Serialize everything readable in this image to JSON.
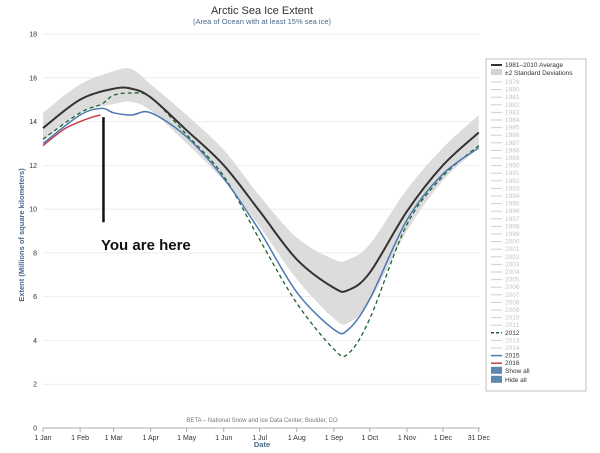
{
  "chart_data": {
    "type": "line",
    "title": "Arctic Sea Ice Extent",
    "subtitle": "(Area of Ocean with at least 15% sea ice)",
    "xlabel": "Date",
    "ylabel": "Extent (Millions of square kilometers)",
    "credit": "BETA – National Snow and Ice Data Center, Boulder, CO",
    "ylim": [
      0,
      18
    ],
    "yticks": [
      0,
      2,
      4,
      6,
      8,
      10,
      12,
      14,
      16,
      18
    ],
    "xlim": [
      1,
      366
    ],
    "xticks": [
      {
        "label": "1 Jan",
        "day": 1
      },
      {
        "label": "1 Feb",
        "day": 32
      },
      {
        "label": "1 Mar",
        "day": 60
      },
      {
        "label": "1 Apr",
        "day": 91
      },
      {
        "label": "1 May",
        "day": 121
      },
      {
        "label": "1 Jun",
        "day": 152
      },
      {
        "label": "1 Jul",
        "day": 182
      },
      {
        "label": "1 Aug",
        "day": 213
      },
      {
        "label": "1 Sep",
        "day": 244
      },
      {
        "label": "1 Oct",
        "day": 274
      },
      {
        "label": "1 Nov",
        "day": 305
      },
      {
        "label": "1 Dec",
        "day": 335
      },
      {
        "label": "31 Dec",
        "day": 365
      }
    ],
    "grid": true,
    "legend_position": "right",
    "band": {
      "name": "±2 Standard Deviations",
      "color": "#dcdcdc",
      "x": [
        1,
        32,
        60,
        75,
        91,
        121,
        152,
        182,
        213,
        244,
        256,
        274,
        305,
        335,
        365
      ],
      "low": [
        13.1,
        14.4,
        14.8,
        14.9,
        14.5,
        13.0,
        11.3,
        9.2,
        6.8,
        5.0,
        4.8,
        5.8,
        9.0,
        11.3,
        12.8
      ],
      "high": [
        14.4,
        15.7,
        16.3,
        16.4,
        15.7,
        14.3,
        12.7,
        10.6,
        8.7,
        7.7,
        7.7,
        8.4,
        10.9,
        12.8,
        14.3
      ]
    },
    "series": [
      {
        "name": "1981–2010 Average",
        "color": "#333333",
        "dash": "none",
        "width": 2,
        "x": [
          1,
          32,
          60,
          75,
          91,
          121,
          152,
          182,
          213,
          244,
          256,
          274,
          305,
          335,
          365
        ],
        "values": [
          13.7,
          15.0,
          15.5,
          15.5,
          15.1,
          13.6,
          12.0,
          9.9,
          7.7,
          6.4,
          6.3,
          7.1,
          9.9,
          12.0,
          13.5
        ]
      },
      {
        "name": "2012",
        "color": "#1f5e2e",
        "dash": "4,3",
        "width": 1.3,
        "x": [
          1,
          32,
          50,
          60,
          75,
          91,
          121,
          152,
          182,
          213,
          244,
          256,
          274,
          305,
          335,
          365
        ],
        "values": [
          13.2,
          14.4,
          14.8,
          15.2,
          15.3,
          15.1,
          13.4,
          11.5,
          8.6,
          5.7,
          3.6,
          3.4,
          5.0,
          9.3,
          11.5,
          12.9
        ]
      },
      {
        "name": "2015",
        "color": "#4a78b0",
        "dash": "none",
        "width": 1.5,
        "x": [
          1,
          32,
          50,
          60,
          75,
          91,
          121,
          152,
          182,
          213,
          244,
          256,
          274,
          305,
          335,
          365
        ],
        "values": [
          13.0,
          14.3,
          14.6,
          14.4,
          14.3,
          14.4,
          13.3,
          11.4,
          9.0,
          6.2,
          4.5,
          4.5,
          5.9,
          9.5,
          11.6,
          12.8
        ]
      },
      {
        "name": "2016",
        "color": "#c0404a",
        "dash": "none",
        "width": 1.5,
        "x": [
          1,
          10,
          20,
          32,
          42,
          49
        ],
        "values": [
          12.9,
          13.3,
          13.7,
          14.0,
          14.2,
          14.3
        ]
      }
    ],
    "annotation": {
      "text": "You are here",
      "day": 49
    }
  },
  "legend": {
    "average": "1981–2010 Average",
    "std": "±2 Standard Deviations",
    "years": [
      "1979",
      "1980",
      "1981",
      "1982",
      "1983",
      "1984",
      "1985",
      "1986",
      "1987",
      "1988",
      "1989",
      "1990",
      "1991",
      "1992",
      "1993",
      "1994",
      "1995",
      "1996",
      "1997",
      "1998",
      "1999",
      "2000",
      "2001",
      "2002",
      "2003",
      "2004",
      "2005",
      "2006",
      "2007",
      "2008",
      "2009",
      "2010",
      "2011",
      "2012",
      "2013",
      "2014",
      "2015",
      "2016"
    ],
    "active_years": {
      "2012": "#1f5e2e",
      "2015": "#4a78b0",
      "2016": "#c0404a"
    },
    "show_all": "Show all",
    "hide_all": "Hide all"
  }
}
